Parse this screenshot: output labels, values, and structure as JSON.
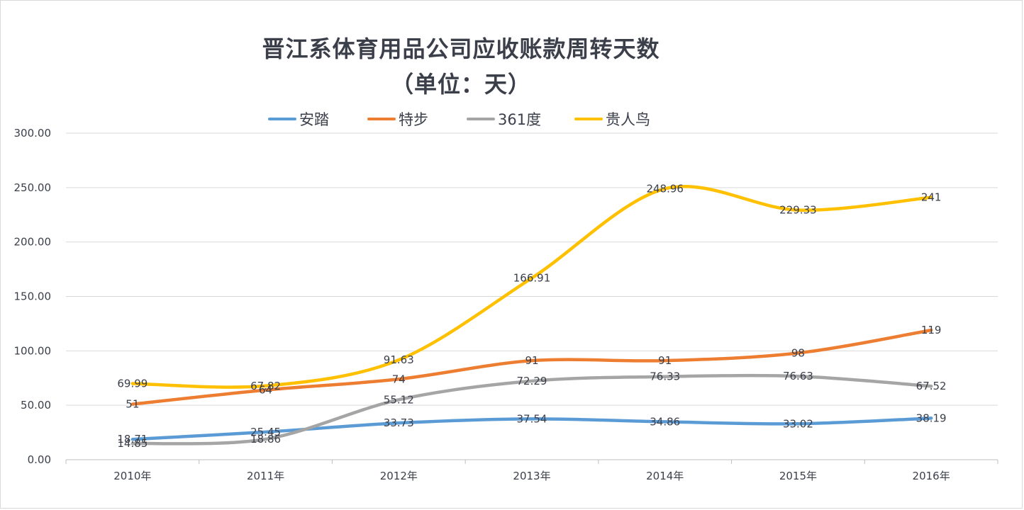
{
  "chart_data": {
    "type": "line",
    "title": "晋江系体育用品公司应收账款周转天数",
    "subtitle": "（单位：天）",
    "categories": [
      "2010年",
      "2011年",
      "2012年",
      "2013年",
      "2014年",
      "2015年",
      "2016年"
    ],
    "ylim": [
      0,
      300
    ],
    "yticks": [
      "0.00",
      "50.00",
      "100.00",
      "150.00",
      "200.00",
      "250.00",
      "300.00"
    ],
    "ytick_values": [
      0,
      50,
      100,
      150,
      200,
      250,
      300
    ],
    "grid": true,
    "legend_position": "top",
    "series": [
      {
        "name": "安踏",
        "color": "#5b9bd5",
        "values": [
          18.71,
          25.45,
          33.73,
          37.54,
          34.86,
          33.02,
          38.19
        ],
        "labels": [
          "18.71",
          "25.45",
          "33.73",
          "37.54",
          "34.86",
          "33.02",
          "38.19"
        ]
      },
      {
        "name": "特步",
        "color": "#ed7d31",
        "values": [
          51,
          64,
          74,
          91,
          91,
          98,
          119
        ],
        "labels": [
          "51",
          "64",
          "74",
          "91",
          "91",
          "98",
          "119"
        ]
      },
      {
        "name": "361度",
        "color": "#a5a5a5",
        "values": [
          14.85,
          18.86,
          55.12,
          72.29,
          76.33,
          76.63,
          67.52
        ],
        "labels": [
          "14.85",
          "18.86",
          "55.12",
          "72.29",
          "76.33",
          "76.63",
          "67.52"
        ]
      },
      {
        "name": "贵人鸟",
        "color": "#ffc000",
        "values": [
          69.99,
          67.82,
          91.63,
          166.91,
          248.96,
          229.33,
          241
        ],
        "labels": [
          "69.99",
          "67.82",
          "91.63",
          "166.91",
          "248.96",
          "229.33",
          "241"
        ]
      }
    ]
  }
}
